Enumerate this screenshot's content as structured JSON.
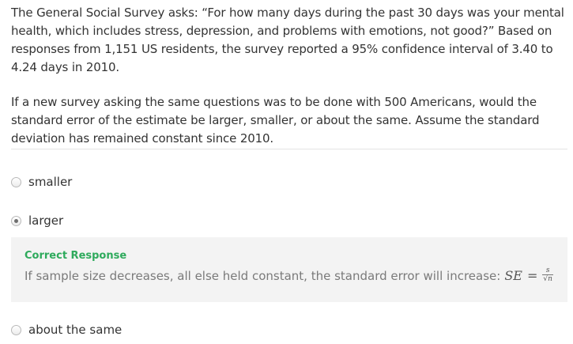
{
  "question": {
    "paragraph1": "The General Social Survey asks: “For how many days during the past 30 days was your mental health, which includes stress, depression, and problems with emotions, not good?” Based on responses from 1,151 US residents, the survey reported a 95% confidence interval of 3.40 to 4.24 days in 2010.",
    "paragraph2": "If a new survey asking the same questions was to be done with 500 Americans, would the standard error of the estimate be larger, smaller, or about the same. Assume the standard deviation has remained constant since 2010."
  },
  "options": [
    {
      "label": "smaller",
      "selected": false
    },
    {
      "label": "larger",
      "selected": true
    },
    {
      "label": "about the same",
      "selected": false
    }
  ],
  "feedback": {
    "title": "Correct Response",
    "text": "If sample size decreases, all else held constant, the standard error will increase:",
    "formula": {
      "lhs": "SE",
      "eq": "=",
      "numerator": "s",
      "sqrt_symbol": "√",
      "denominator": "n"
    },
    "title_color": "#2eaa5c"
  }
}
